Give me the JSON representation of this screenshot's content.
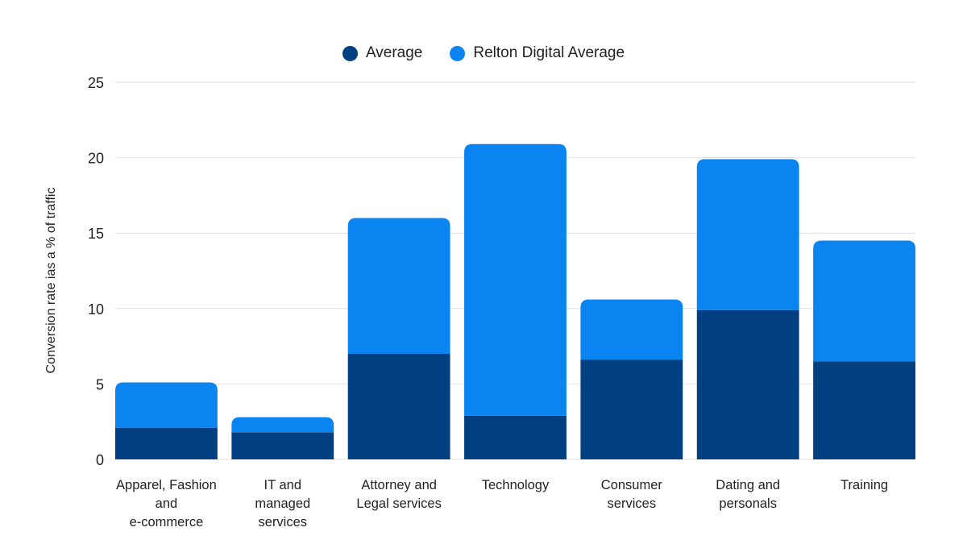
{
  "chart_data": {
    "type": "bar",
    "stacked": true,
    "title": "",
    "xlabel": "",
    "ylabel": "Conversion rate ias a % of traffic",
    "ylim": [
      0,
      25
    ],
    "yticks": [
      0,
      5,
      10,
      15,
      20,
      25
    ],
    "grid": true,
    "legend_position": "top-center",
    "categories": [
      "Apparel, Fashion\nand\ne-commerce",
      "IT and\nmanaged\nservices",
      "Attorney and\nLegal services",
      "Technology",
      "Consumer\nservices",
      "Dating and\npersonals",
      "Training"
    ],
    "series": [
      {
        "name": "Average",
        "color": "#004080",
        "values": [
          2.1,
          1.8,
          7.0,
          2.9,
          6.6,
          9.9,
          6.5
        ]
      },
      {
        "name": "Relton Digital Average",
        "color": "#0a84f0",
        "values": [
          3.0,
          1.0,
          9.0,
          18.0,
          4.0,
          10.0,
          8.0
        ]
      }
    ],
    "totals": [
      5.1,
      2.8,
      16.0,
      20.9,
      10.6,
      19.9,
      14.5
    ]
  },
  "legend": [
    {
      "label": "Average",
      "color": "#004080"
    },
    {
      "label": "Relton Digital Average",
      "color": "#0a84f0"
    }
  ]
}
